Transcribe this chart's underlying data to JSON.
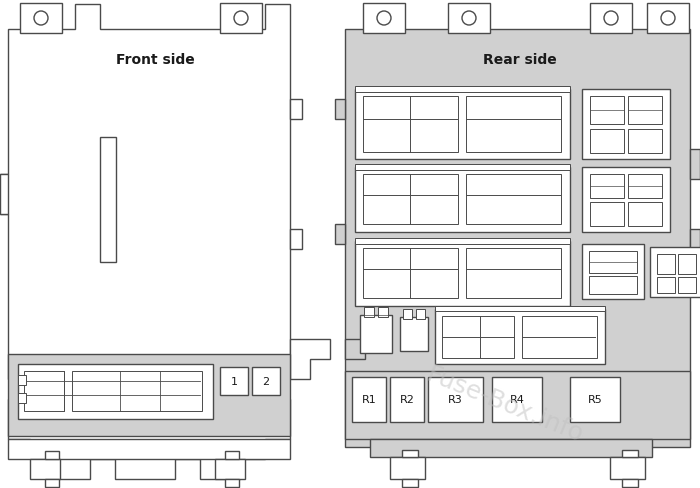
{
  "bg_color": "#ffffff",
  "outline_color": "#4a4a4a",
  "fill_light": "#d0d0d0",
  "fill_white": "#ffffff",
  "text_color": "#1a1a1a",
  "watermark": "Fuse-Box.info",
  "front_label": "Front side",
  "rear_label": "Rear side",
  "relay_labels": [
    "R1",
    "R2",
    "R3",
    "R4",
    "R5"
  ],
  "lw": 1.0
}
